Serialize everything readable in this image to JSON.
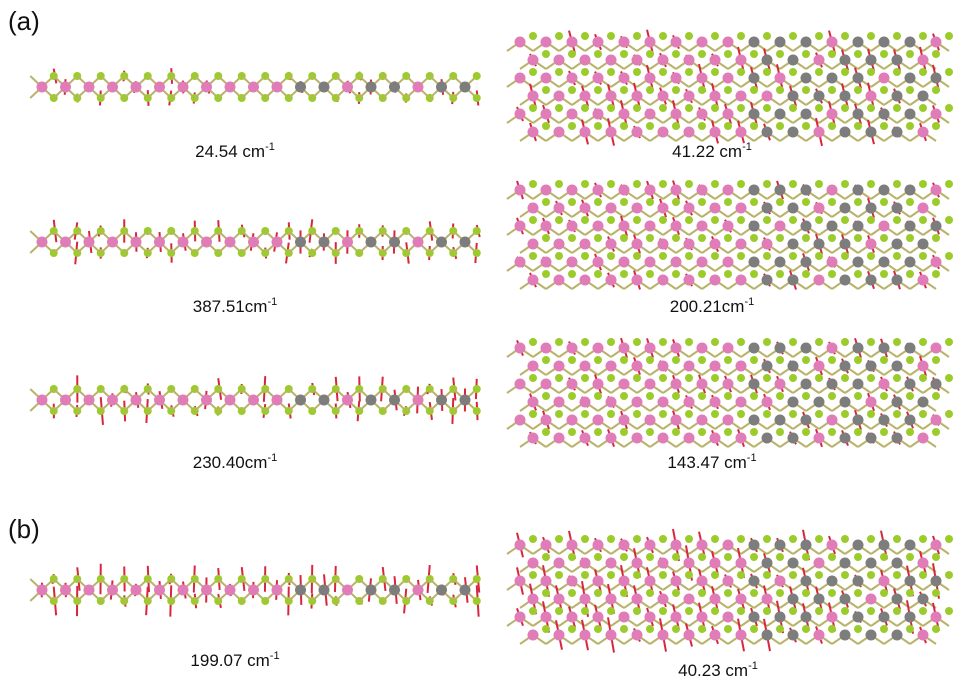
{
  "panels": [
    {
      "label": "(a)",
      "modes": [
        {
          "text": "24.54 cm",
          "sup": "-1"
        },
        {
          "text": "41.22 cm",
          "sup": "-1"
        },
        {
          "text": "387.51cm",
          "sup": "-1"
        },
        {
          "text": "200.21cm",
          "sup": "-1"
        },
        {
          "text": "230.40cm",
          "sup": "-1"
        },
        {
          "text": "143.47 cm",
          "sup": "-1"
        }
      ]
    },
    {
      "label": "(b)",
      "modes": [
        {
          "text": "199.07 cm",
          "sup": "-1"
        },
        {
          "text": "40.23 cm",
          "sup": "-1"
        }
      ]
    }
  ]
}
